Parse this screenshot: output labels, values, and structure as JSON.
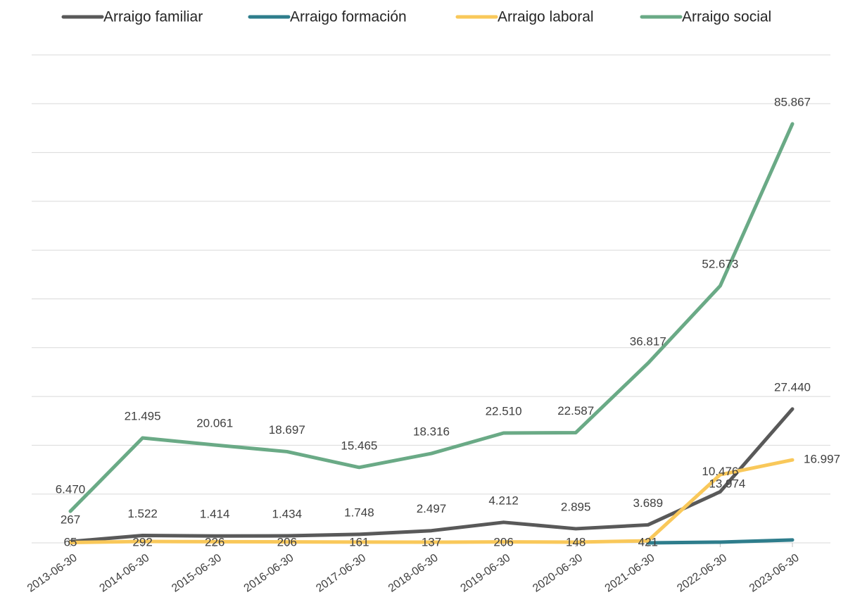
{
  "chart_data": {
    "type": "line",
    "x": [
      "2013-06-30",
      "2014-06-30",
      "2015-06-30",
      "2016-06-30",
      "2017-06-30",
      "2018-06-30",
      "2019-06-30",
      "2020-06-30",
      "2021-06-30",
      "2022-06-30",
      "2023-06-30"
    ],
    "series": [
      {
        "name": "Arraigo familiar",
        "color": "#595959",
        "values": [
          267,
          1522,
          1414,
          1434,
          1748,
          2497,
          4212,
          2895,
          3689,
          10476,
          27440
        ],
        "value_labels": [
          "267",
          "1.522",
          "1.414",
          "1.434",
          "1.748",
          "2.497",
          "4.212",
          "2.895",
          "3.689",
          "10.476",
          "27.440"
        ]
      },
      {
        "name": "Arraigo formación",
        "color": "#2e7d8c",
        "values": [
          null,
          null,
          null,
          null,
          null,
          null,
          null,
          null,
          0,
          150,
          600
        ]
      },
      {
        "name": "Arraigo laboral",
        "color": "#f9c85a",
        "values": [
          65,
          292,
          226,
          206,
          161,
          137,
          206,
          148,
          421,
          13974,
          16997
        ],
        "value_labels": [
          "65",
          "292",
          "226",
          "206",
          "161",
          "137",
          "206",
          "148",
          "421",
          "13.974",
          "16.997"
        ]
      },
      {
        "name": "Arraigo social",
        "color": "#6aaa86",
        "values": [
          6470,
          21495,
          20061,
          18697,
          15465,
          18316,
          22510,
          22587,
          36817,
          52673,
          85867
        ],
        "value_labels": [
          "6.470",
          "21.495",
          "20.061",
          "18.697",
          "15.465",
          "18.316",
          "22.510",
          "22.587",
          "36.817",
          "52.673",
          "85.867"
        ]
      }
    ],
    "ylim": [
      0,
      100000
    ],
    "yticks": [
      0,
      10000,
      20000,
      30000,
      40000,
      50000,
      60000,
      70000,
      80000,
      90000,
      100000
    ],
    "grid": true
  }
}
